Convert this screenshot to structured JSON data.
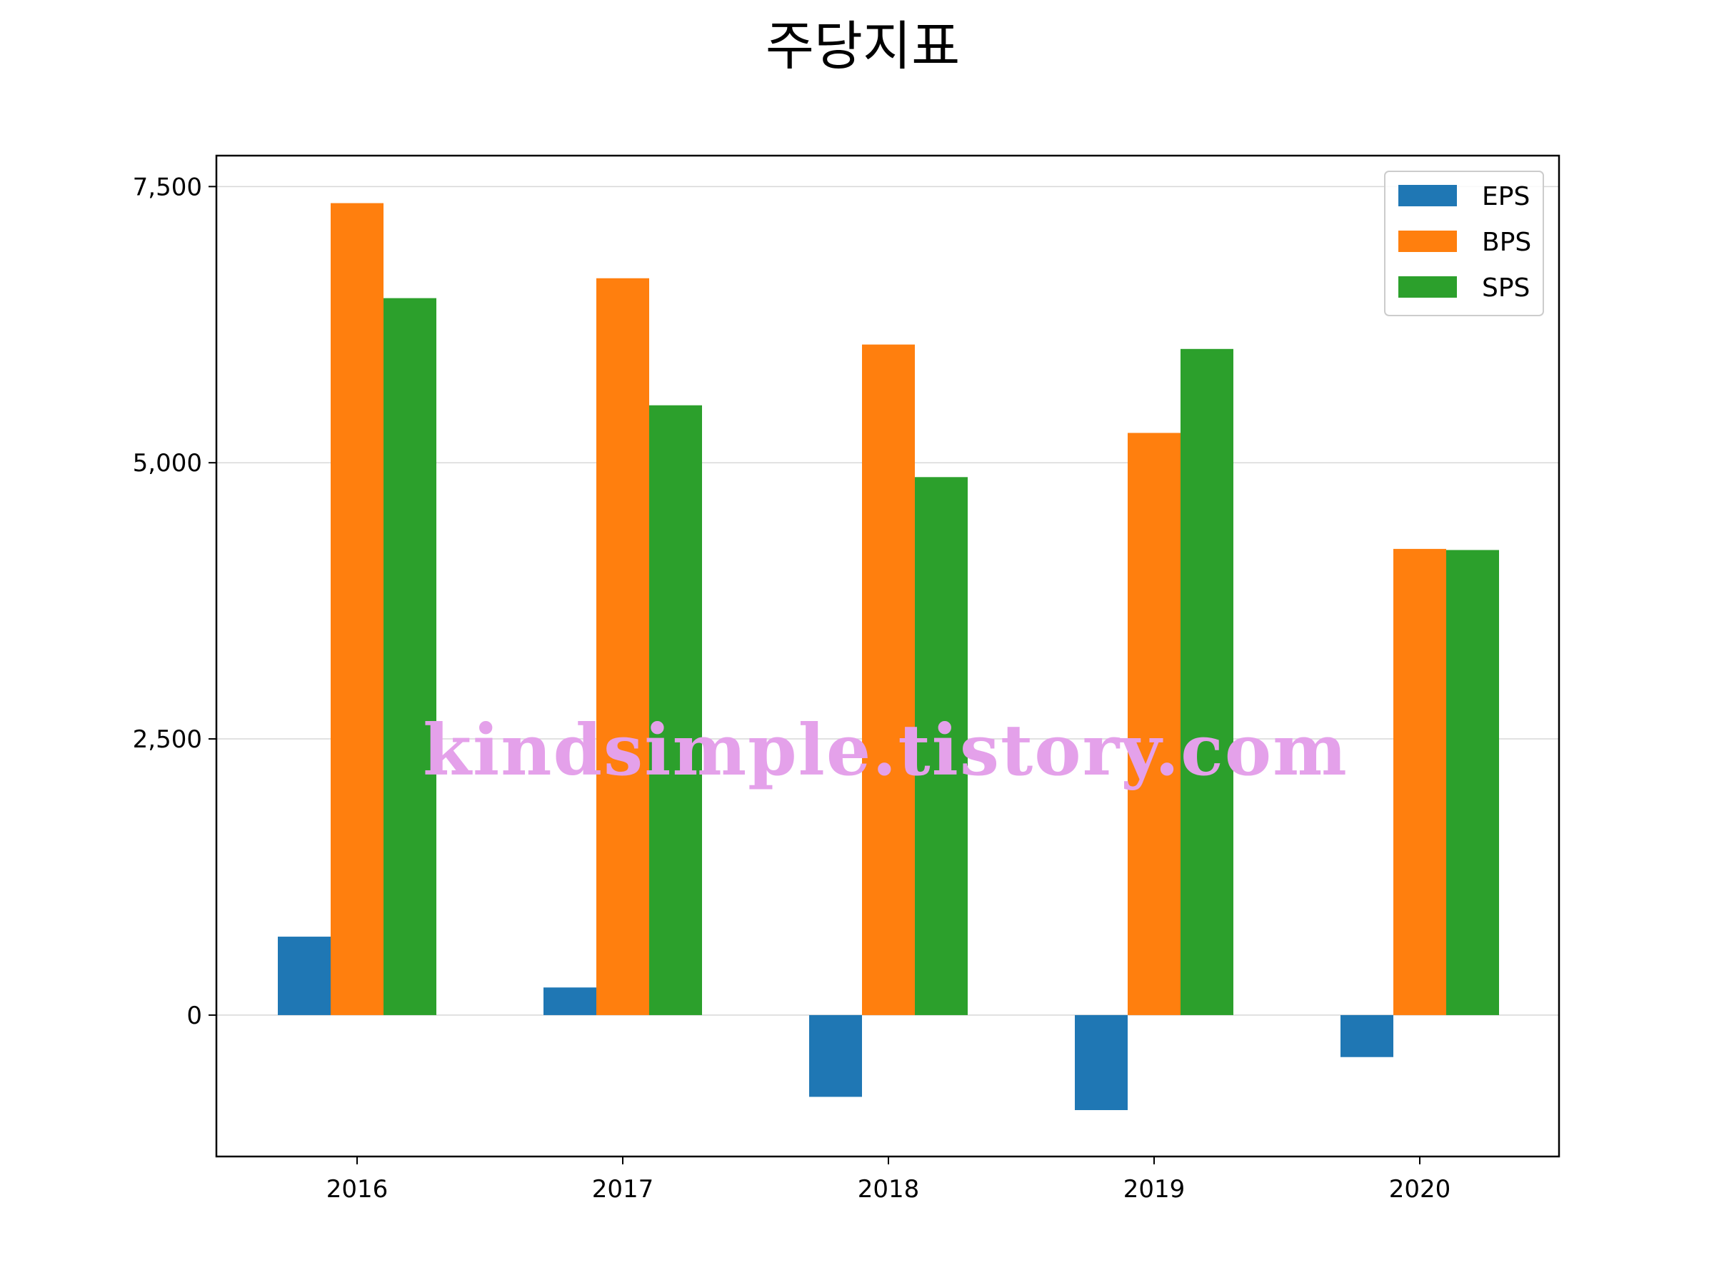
{
  "chart_data": {
    "type": "bar",
    "title": "주당지표",
    "xlabel": "",
    "ylabel": "",
    "categories": [
      "2016",
      "2017",
      "2018",
      "2019",
      "2020"
    ],
    "series": [
      {
        "name": "EPS",
        "color": "#1f77b4",
        "values": [
          710,
          250,
          -740,
          -860,
          -380
        ]
      },
      {
        "name": "BPS",
        "color": "#ff7f0e",
        "values": [
          7350,
          6670,
          6070,
          5270,
          4220
        ]
      },
      {
        "name": "SPS",
        "color": "#2ca02c",
        "values": [
          6490,
          5520,
          4870,
          6030,
          4210
        ]
      }
    ],
    "ylim": [
      -1280,
      7780
    ],
    "yticks": [
      0,
      2500,
      5000,
      7500
    ],
    "ytick_labels": [
      "0",
      "2,500",
      "5,000",
      "7,500"
    ],
    "grid": "y",
    "legend_position": "top-right",
    "watermark": "kindsimple.tistory.com"
  }
}
